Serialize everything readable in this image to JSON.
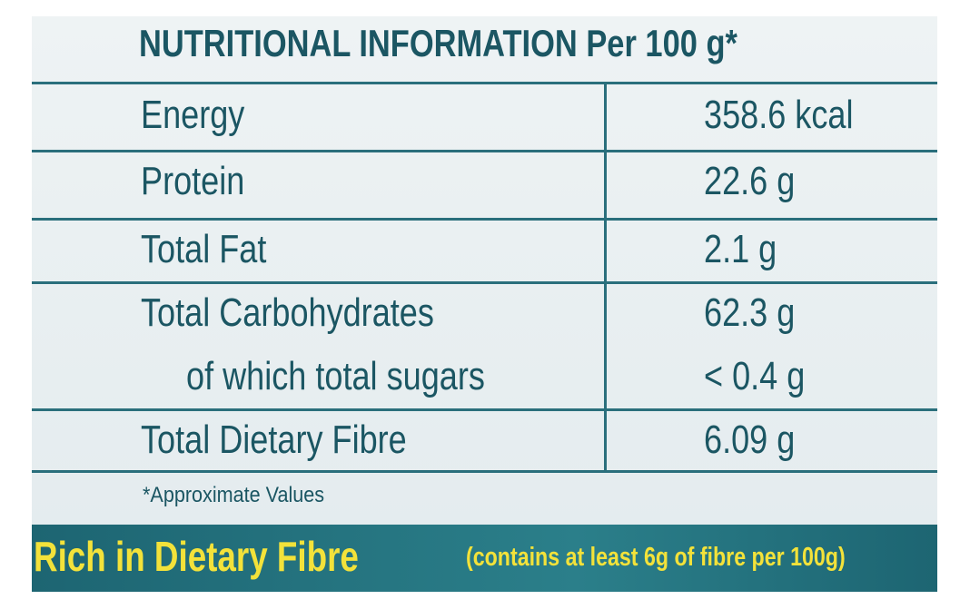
{
  "header": {
    "title": "NUTRITIONAL INFORMATION Per 100 g*"
  },
  "table": {
    "rows": [
      [
        "Energy",
        "358.6 kcal"
      ],
      [
        "Protein",
        "22.6 g"
      ],
      [
        "Total Fat",
        "2.1 g"
      ],
      [
        "Total Carbohydrates",
        "62.3 g"
      ],
      [
        "of which total sugars",
        "< 0.4 g"
      ],
      [
        "Total Dietary Fibre",
        "6.09 g"
      ]
    ]
  },
  "note": "*Approximate Values",
  "banner": {
    "headline": "Rich in Dietary Fibre",
    "detail": "(contains at least 6g of fibre per 100g)"
  }
}
